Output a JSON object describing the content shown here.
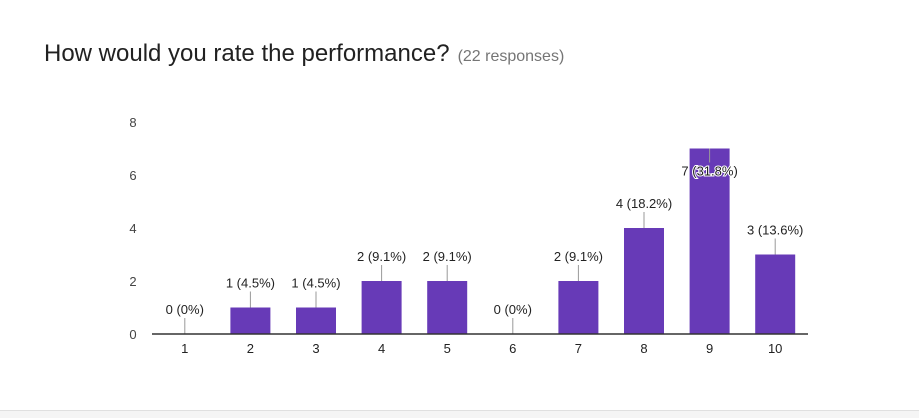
{
  "question": "How would you rate the performance?",
  "responses_text": "(22 responses)",
  "colors": {
    "bar": "#673ab7",
    "axis": "#333333",
    "leader": "#999999"
  },
  "chart_data": {
    "type": "bar",
    "title": "How would you rate the performance?",
    "subtitle": "(22 responses)",
    "categories": [
      "1",
      "2",
      "3",
      "4",
      "5",
      "6",
      "7",
      "8",
      "9",
      "10"
    ],
    "values": [
      0,
      1,
      1,
      2,
      2,
      0,
      2,
      4,
      7,
      3
    ],
    "data_labels": [
      "0 (0%)",
      "1 (4.5%)",
      "1 (4.5%)",
      "2 (9.1%)",
      "2 (9.1%)",
      "0 (0%)",
      "2 (9.1%)",
      "4 (18.2%)",
      "7 (31.8%)",
      "3 (13.6%)"
    ],
    "y_ticks": [
      "0",
      "2",
      "4",
      "6",
      "8"
    ],
    "ylim": [
      0,
      8
    ],
    "xlabel": "",
    "ylabel": "",
    "grid": false
  }
}
